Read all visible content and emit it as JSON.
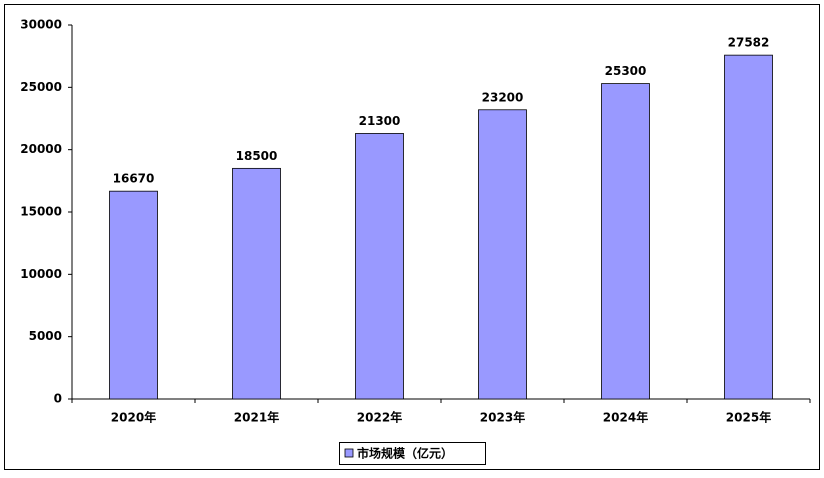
{
  "chart_data": {
    "type": "bar",
    "categories": [
      "2020年",
      "2021年",
      "2022年",
      "2023年",
      "2024年",
      "2025年"
    ],
    "series": [
      {
        "name": "市场规模（亿元）",
        "color": "#9999ff",
        "values": [
          16670,
          18500,
          21300,
          23200,
          25300,
          27582
        ]
      }
    ],
    "ylim": [
      0,
      30000
    ],
    "yticks": [
      0,
      5000,
      10000,
      15000,
      20000,
      25000,
      30000
    ],
    "grid": false,
    "legend": "bottom",
    "data_labels": true
  }
}
